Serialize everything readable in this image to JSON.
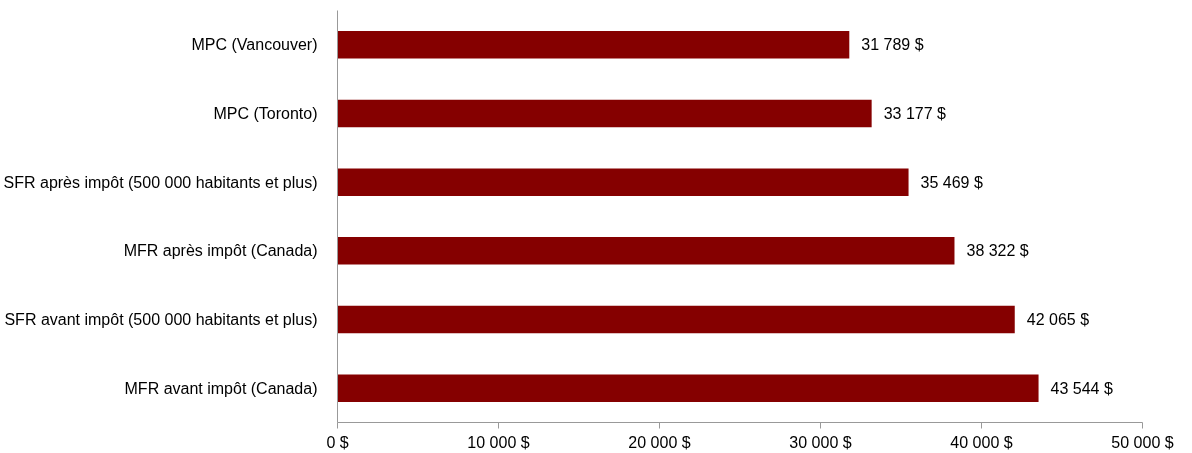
{
  "chart_data": {
    "type": "bar",
    "orientation": "horizontal",
    "categories": [
      "MPC (Vancouver)",
      "MPC (Toronto)",
      "SFR après impôt (500 000 habitants et plus)",
      "MFR après impôt (Canada)",
      "SFR avant impôt (500 000 habitants et plus)",
      "MFR avant impôt (Canada)"
    ],
    "values": [
      31789,
      33177,
      35469,
      38322,
      42065,
      43544
    ],
    "value_labels": [
      "31 789 $",
      "33 177 $",
      "35 469 $",
      "38 322 $",
      "42 065 $",
      "43 544 $"
    ],
    "color": "#850000",
    "xlim": [
      0,
      50000
    ],
    "xticks": [
      {
        "value": 0,
        "label": "0 $"
      },
      {
        "value": 10000,
        "label": "10 000 $"
      },
      {
        "value": 20000,
        "label": "20 000 $"
      },
      {
        "value": 30000,
        "label": "30 000 $"
      },
      {
        "value": 40000,
        "label": "40 000 $"
      },
      {
        "value": 50000,
        "label": "50 000 $"
      }
    ],
    "grid": false
  }
}
